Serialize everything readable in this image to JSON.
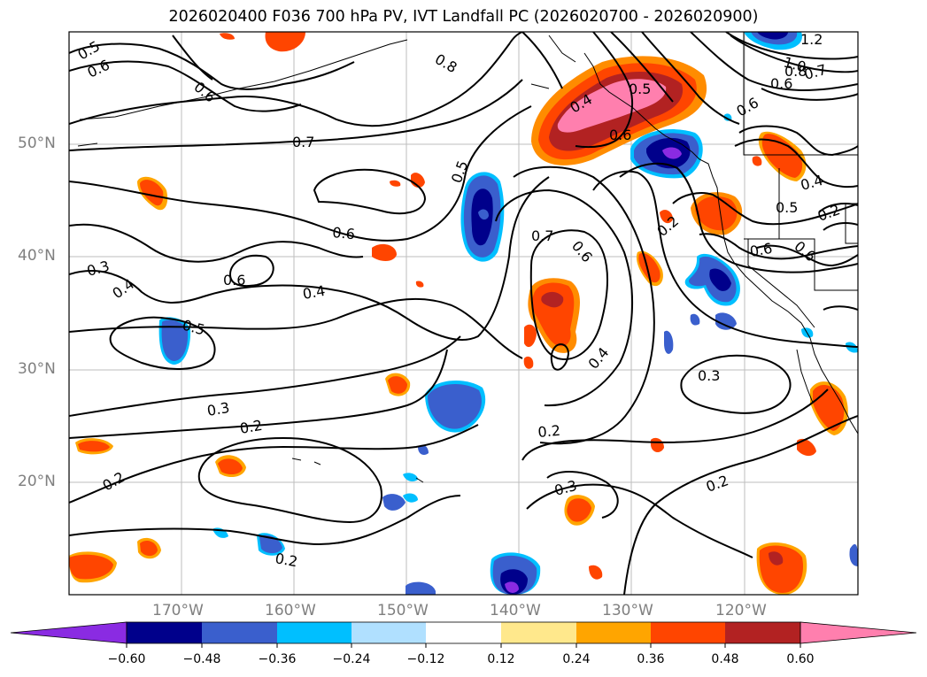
{
  "title": "2026020400 F036 700 hPa PV, IVT Landfall PC (2026020700 - 2026020900)",
  "lat_labels": [
    "50°N",
    "40°N",
    "30°N",
    "20°N"
  ],
  "lon_labels": [
    "170°W",
    "160°W",
    "150°W",
    "140°W",
    "130°W",
    "120°W"
  ],
  "colorbar": {
    "colors": [
      "#8a2be2",
      "#00008b",
      "#3a5fcd",
      "#00bfff",
      "#b0e0ff",
      "#ffffff",
      "#ffe88c",
      "#ffa500",
      "#ff4500",
      "#b22222",
      "#ff7fae"
    ],
    "ticks": [
      "−0.60",
      "−0.48",
      "−0.36",
      "−0.24",
      "−0.12",
      "0.12",
      "0.24",
      "0.36",
      "0.48",
      "0.60"
    ]
  },
  "contour_labels": [
    "0.5",
    "0.6",
    "0.6",
    "0.8",
    "0.4",
    "0.5",
    "0.6",
    "0.7",
    "0.5",
    "0.6",
    "0.7",
    "0.6",
    "0.6",
    "0.4",
    "0.3",
    "0.4",
    "0.5",
    "0.4",
    "0.3",
    "0.3",
    "0.2",
    "0.2",
    "0.2",
    "0.2",
    "0.3",
    "0.2",
    "0.2",
    "1.2",
    "1.0",
    "0.8",
    "0.6",
    "0.7",
    "0.6",
    "0.4",
    "0.5",
    "0.6",
    "0.6",
    "0.2"
  ]
}
